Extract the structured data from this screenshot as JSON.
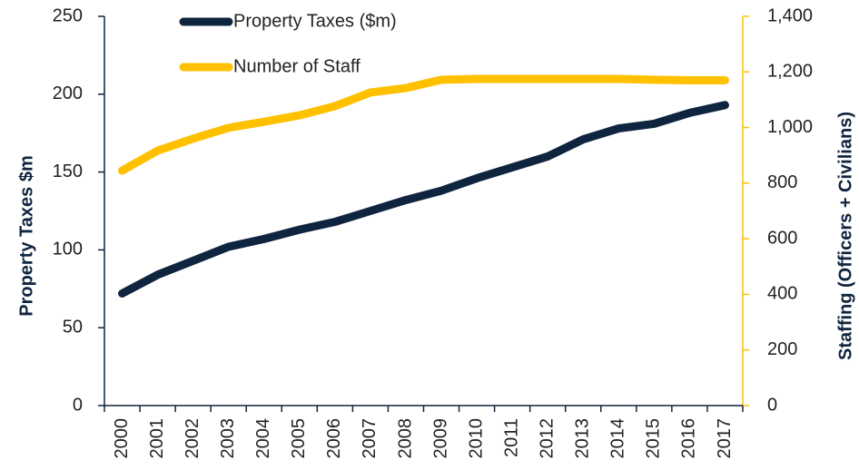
{
  "chart_data": {
    "type": "line",
    "categories": [
      "2000",
      "2001",
      "2002",
      "2003",
      "2004",
      "2005",
      "2006",
      "2007",
      "2008",
      "2009",
      "2010",
      "2011",
      "2012",
      "2013",
      "2014",
      "2015",
      "2016",
      "2017"
    ],
    "series": [
      {
        "name": "Property Taxes ($m)",
        "color": "#0f243e",
        "values": [
          72,
          84,
          93,
          102,
          107,
          113,
          118,
          125,
          132,
          138,
          146,
          153,
          160,
          171,
          178,
          181,
          188,
          193
        ]
      },
      {
        "name": "Number of Staff",
        "color": "#ffc000",
        "axis": "y2",
        "values": [
          845,
          917,
          960,
          999,
          1021,
          1044,
          1077,
          1126,
          1142,
          1172,
          1175,
          1175,
          1175,
          1175,
          1175,
          1172,
          1170,
          1170
        ]
      }
    ],
    "ylabel": "Property Taxes $m",
    "y2label": "Staffing (Officers + Civilians)",
    "ylim": [
      0,
      250
    ],
    "yticks": [
      0,
      50,
      100,
      150,
      200,
      250
    ],
    "y2lim": [
      0,
      1400
    ],
    "y2ticks": [
      0,
      200,
      400,
      600,
      800,
      {
        "value": 1000,
        "label": "1,000"
      },
      {
        "value": 1200,
        "label": "1,200"
      },
      {
        "value": 1400,
        "label": "1,400"
      }
    ],
    "legend": "top"
  }
}
